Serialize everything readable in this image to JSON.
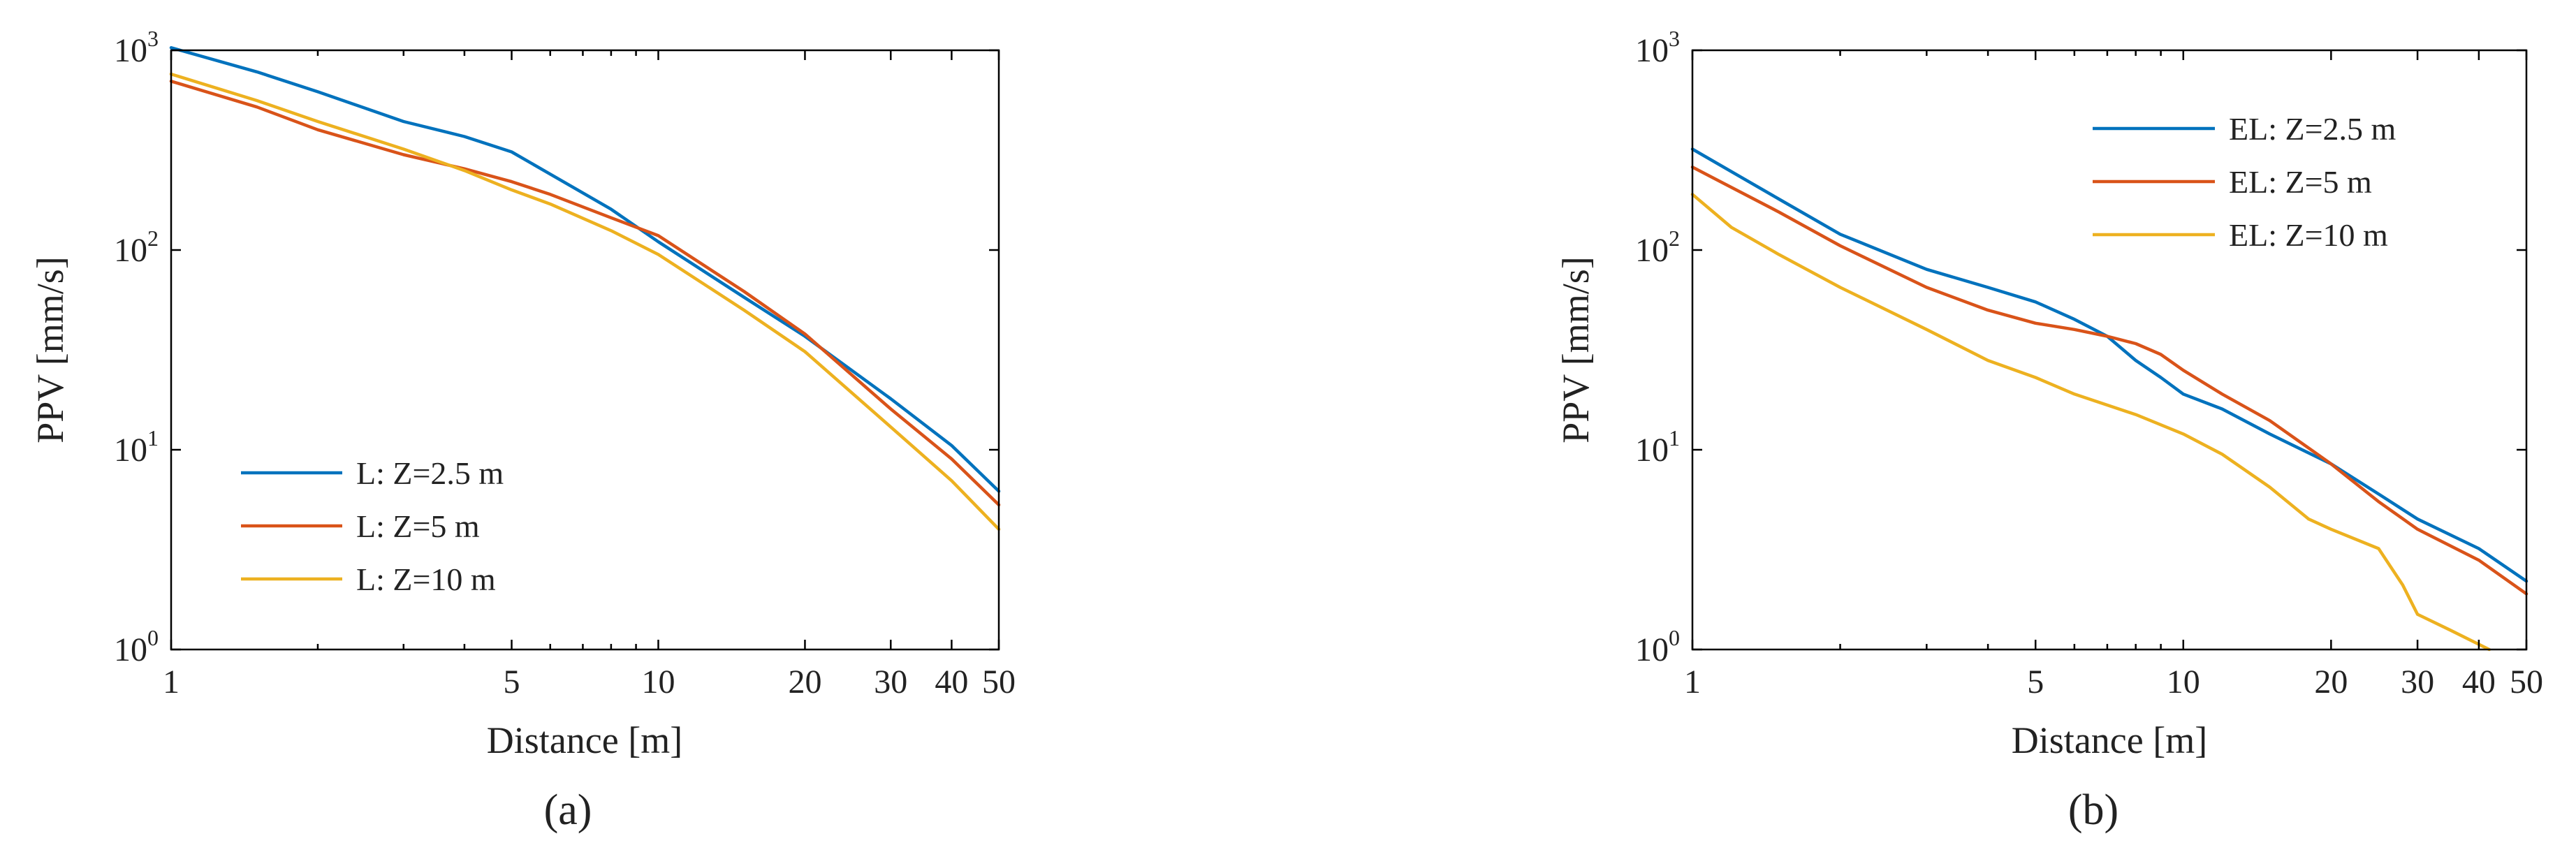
{
  "charts": [
    {
      "id": "a",
      "caption": "(a)",
      "type": "line",
      "xlabel": "Distance [m]",
      "ylabel": "PPV [mm/s]",
      "x_scale": "log",
      "y_scale": "log",
      "xlim": [
        1,
        50
      ],
      "ylim": [
        1,
        1000
      ],
      "x_ticks": [
        1,
        5,
        10,
        20,
        30,
        40,
        50
      ],
      "x_tick_labels": [
        "1",
        "5",
        "10",
        "20",
        "30",
        "40",
        "50"
      ],
      "y_ticks": [
        1,
        10,
        100,
        1000
      ],
      "y_tick_labels": [
        {
          "base": "10",
          "exp": "0"
        },
        {
          "base": "10",
          "exp": "1"
        },
        {
          "base": "10",
          "exp": "2"
        },
        {
          "base": "10",
          "exp": "3"
        }
      ],
      "legend_position": "lower-left",
      "series": [
        {
          "name": "L: Z=2.5 m",
          "color": "#0072BD",
          "x": [
            1,
            1.5,
            2,
            3,
            4,
            5,
            6,
            8,
            10,
            15,
            20,
            30,
            40,
            50
          ],
          "y": [
            1030,
            780,
            620,
            440,
            370,
            310,
            240,
            160,
            110,
            58,
            37,
            18,
            10.5,
            6.2
          ]
        },
        {
          "name": "L: Z=5 m",
          "color": "#D95319",
          "x": [
            1,
            1.5,
            2,
            3,
            4,
            5,
            6,
            8,
            10,
            15,
            20,
            30,
            40,
            50
          ],
          "y": [
            700,
            520,
            400,
            300,
            255,
            220,
            190,
            145,
            118,
            62,
            38,
            16,
            9,
            5.3
          ]
        },
        {
          "name": "L: Z=10 m",
          "color": "#EDB120",
          "x": [
            1,
            1.5,
            2,
            3,
            4,
            5,
            6,
            8,
            10,
            15,
            20,
            30,
            40,
            50
          ],
          "y": [
            760,
            560,
            440,
            320,
            250,
            200,
            170,
            125,
            95,
            50,
            31,
            13,
            7,
            4
          ]
        }
      ]
    },
    {
      "id": "b",
      "caption": "(b)",
      "type": "line",
      "xlabel": "Distance [m]",
      "ylabel": "PPV [mm/s]",
      "x_scale": "log",
      "y_scale": "log",
      "xlim": [
        1,
        50
      ],
      "ylim": [
        1,
        1000
      ],
      "x_ticks": [
        1,
        5,
        10,
        20,
        30,
        40,
        50
      ],
      "x_tick_labels": [
        "1",
        "5",
        "10",
        "20",
        "30",
        "40",
        "50"
      ],
      "y_ticks": [
        1,
        10,
        100,
        1000
      ],
      "y_tick_labels": [
        {
          "base": "10",
          "exp": "0"
        },
        {
          "base": "10",
          "exp": "1"
        },
        {
          "base": "10",
          "exp": "2"
        },
        {
          "base": "10",
          "exp": "3"
        }
      ],
      "legend_position": "top-right",
      "series": [
        {
          "name": "EL: Z=2.5 m",
          "color": "#0072BD",
          "x": [
            1,
            1.5,
            2,
            3,
            4,
            5,
            6,
            7,
            8,
            9,
            10,
            12,
            15,
            20,
            25,
            30,
            40,
            50
          ],
          "y": [
            320,
            180,
            120,
            80,
            65,
            55,
            45,
            37,
            28,
            23,
            19,
            16,
            12,
            8.5,
            6,
            4.5,
            3.2,
            2.2
          ]
        },
        {
          "name": "EL: Z=5 m",
          "color": "#D95319",
          "x": [
            1,
            1.5,
            2,
            3,
            4,
            5,
            6,
            7,
            8,
            9,
            10,
            12,
            15,
            20,
            25,
            30,
            40,
            50
          ],
          "y": [
            260,
            155,
            105,
            65,
            50,
            43,
            40,
            37,
            34,
            30,
            25,
            19,
            14,
            8.5,
            5.5,
            4,
            2.8,
            1.9
          ]
        },
        {
          "name": "EL: Z=10 m",
          "color": "#EDB120",
          "x": [
            1,
            1.2,
            1.5,
            2,
            3,
            4,
            5,
            6,
            8,
            10,
            12,
            15,
            18,
            20,
            25,
            28,
            30,
            35,
            42
          ],
          "y": [
            190,
            130,
            95,
            65,
            40,
            28,
            23,
            19,
            15,
            12,
            9.5,
            6.5,
            4.5,
            4,
            3.2,
            2.1,
            1.5,
            1.25,
            1.0
          ]
        }
      ]
    }
  ]
}
